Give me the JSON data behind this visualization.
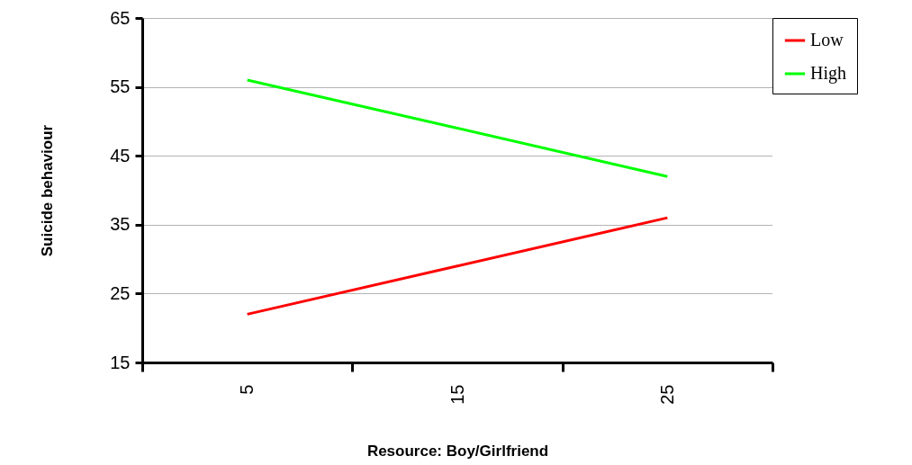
{
  "chart_data": {
    "type": "line",
    "xlabel": "Resource: Boy/Girlfriend",
    "ylabel": "Suicide behaviour",
    "categories": [
      "5",
      "15",
      "25"
    ],
    "series": [
      {
        "name": "Low",
        "color": "#ff0000",
        "values": [
          22,
          29,
          36
        ]
      },
      {
        "name": "High",
        "color": "#00ff00",
        "values": [
          56,
          49,
          42
        ]
      }
    ],
    "ylim": [
      15,
      65
    ],
    "yticks": [
      15,
      25,
      35,
      45,
      55,
      65
    ],
    "grid": "y",
    "legend": "right",
    "marker": "none",
    "line_style": "solid"
  }
}
